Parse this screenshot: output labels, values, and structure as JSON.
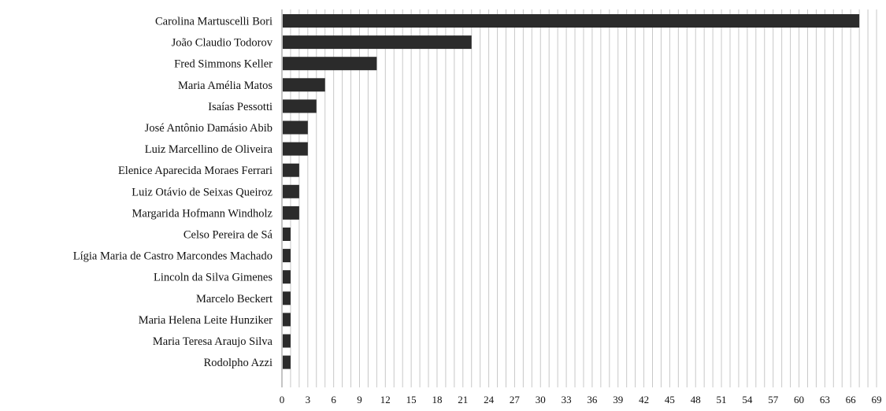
{
  "chart_data": {
    "type": "bar",
    "orientation": "horizontal",
    "categories": [
      "Carolina Martuscelli Bori",
      "João Claudio Todorov",
      "Fred Simmons Keller",
      "Maria Amélia Matos",
      "Isaías Pessotti",
      "José Antônio Damásio Abib",
      "Luiz Marcellino de Oliveira",
      "Elenice Aparecida Moraes Ferrari",
      "Luiz Otávio de Seixas Queiroz",
      "Margarida Hofmann Windholz",
      "Celso Pereira de Sá",
      "Lígia Maria de Castro Marcondes Machado",
      "Lincoln da Silva Gimenes",
      "Marcelo Beckert",
      "Maria Helena Leite Hunziker",
      "Maria Teresa Araujo Silva",
      "Rodolpho Azzi"
    ],
    "values": [
      67,
      22,
      11,
      5,
      4,
      3,
      3,
      2,
      2,
      2,
      1,
      1,
      1,
      1,
      1,
      1,
      1
    ],
    "xticks": [
      "0",
      "3",
      "6",
      "9",
      "12",
      "15",
      "18",
      "21",
      "24",
      "27",
      "30",
      "33",
      "36",
      "39",
      "42",
      "45",
      "48",
      "51",
      "54",
      "57",
      "60",
      "63",
      "66",
      "69"
    ],
    "xlim": [
      0,
      69
    ],
    "minor_grid_step": 1,
    "title": "",
    "xlabel": "",
    "ylabel": "",
    "grid": true,
    "legend": "none",
    "bar_color": "#2b2b2b",
    "grid_color": "#c8c8c8"
  }
}
